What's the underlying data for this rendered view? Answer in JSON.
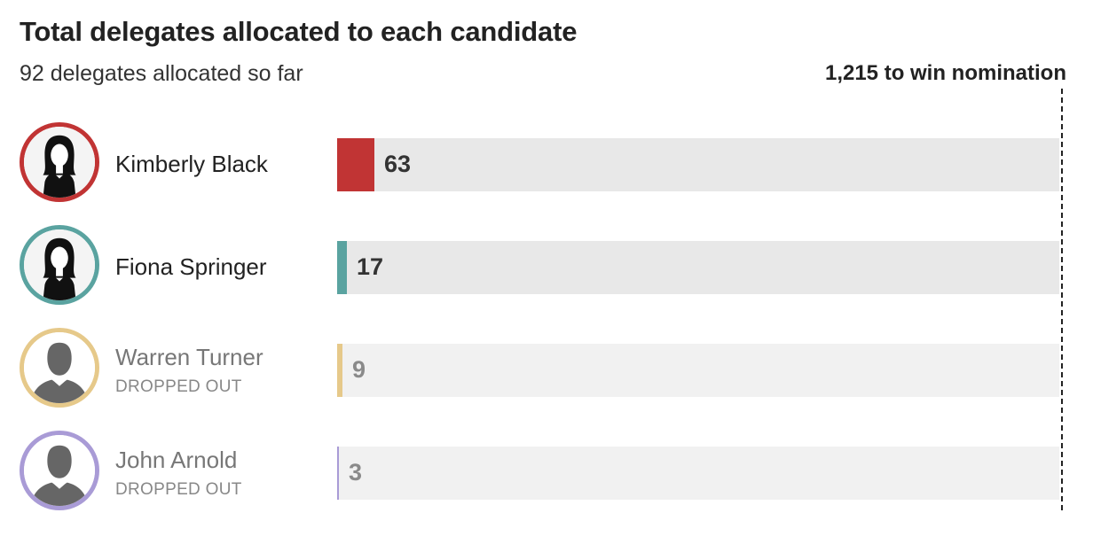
{
  "title": "Total delegates allocated to each candidate",
  "subtitle": "92 delegates allocated so far",
  "threshold_label": "1,215 to win nomination",
  "chart_data": {
    "type": "bar",
    "orientation": "horizontal",
    "title": "Total delegates allocated to each candidate",
    "subtitle": "92 delegates allocated so far",
    "categories": [
      "Kimberly Black",
      "Fiona Springer",
      "Warren Turner",
      "John Arnold"
    ],
    "values": [
      63,
      17,
      9,
      3
    ],
    "xlim": [
      0,
      1215
    ],
    "threshold": {
      "value": 1215,
      "label": "1,215 to win nomination"
    },
    "grid": false,
    "legend": "none"
  },
  "candidates": [
    {
      "name": "Kimberly Black",
      "status": "",
      "delegates": 63,
      "color": "#c13434",
      "track": "#e8e8e8",
      "value_color": "#333333",
      "name_color": "#222222",
      "figure": "female-silhouette-icon"
    },
    {
      "name": "Fiona Springer",
      "status": "",
      "delegates": 17,
      "color": "#5aa3a0",
      "track": "#e8e8e8",
      "value_color": "#333333",
      "name_color": "#222222",
      "figure": "female-silhouette-icon"
    },
    {
      "name": "Warren Turner",
      "status": "DROPPED OUT",
      "delegates": 9,
      "color": "#e6c98a",
      "track": "#f1f1f1",
      "value_color": "#8a8a8a",
      "name_color": "#777777",
      "figure": "male-silhouette-icon"
    },
    {
      "name": "John Arnold",
      "status": "DROPPED OUT",
      "delegates": 3,
      "color": "#a99bd6",
      "track": "#f1f1f1",
      "value_color": "#8a8a8a",
      "name_color": "#777777",
      "figure": "male-silhouette-icon"
    }
  ]
}
